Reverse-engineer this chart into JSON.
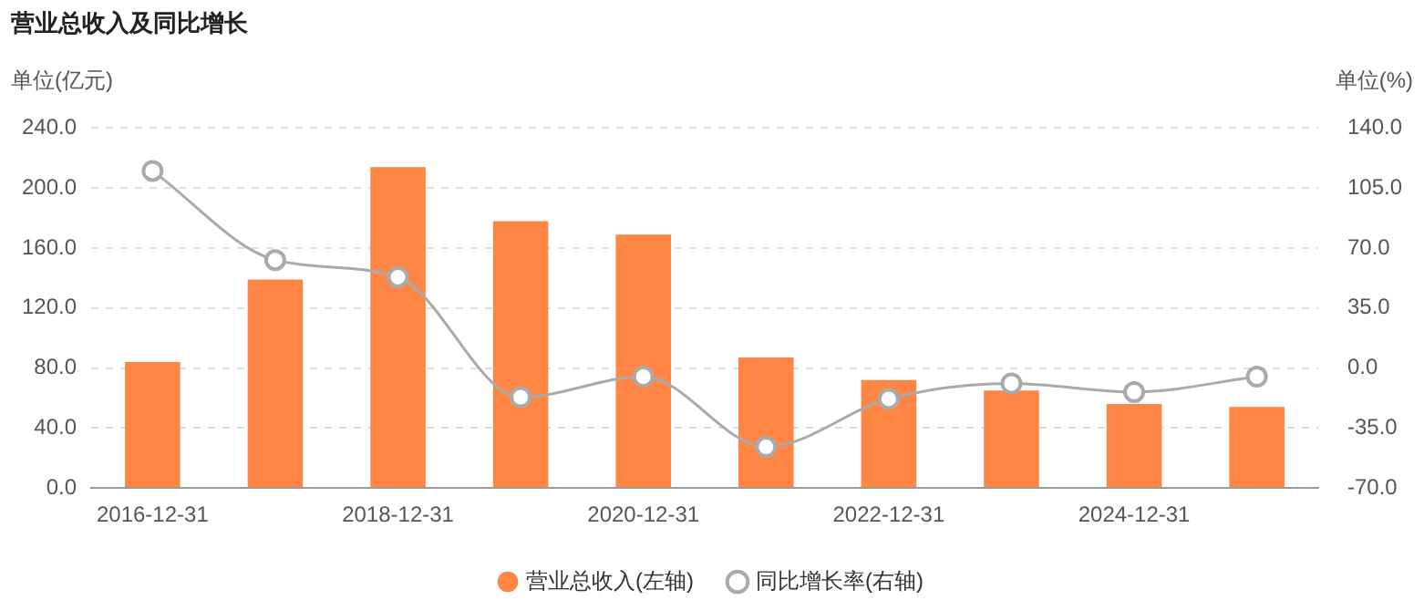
{
  "chart_data": {
    "type": "bar",
    "title": "营业总收入及同比增长",
    "ylabel": "单位(亿元)",
    "y2label": "单位(%)",
    "categories": [
      "2016-12-31",
      null,
      "2018-12-31",
      null,
      "2020-12-31",
      null,
      "2022-12-31",
      null,
      "2024-12-31",
      null
    ],
    "series": [
      {
        "name": "营业总收入(左轴)",
        "color": "#ff8544",
        "values": [
          84,
          139,
          214,
          178,
          169,
          87,
          72,
          65,
          56,
          54
        ]
      },
      {
        "name": "同比增长率(右轴)",
        "type": "line",
        "axis": "y2",
        "color": "#aaaaaa",
        "marker": "circle",
        "values": [
          115,
          63,
          53,
          -17,
          -5,
          -46,
          -18,
          -9,
          -14,
          -5
        ]
      }
    ],
    "ylim": [
      0,
      240
    ],
    "yticks": [
      {
        "value": 0,
        "label": "0.0"
      },
      {
        "value": 40,
        "label": "40.0"
      },
      {
        "value": 80,
        "label": "80.0"
      },
      {
        "value": 120,
        "label": "120.0"
      },
      {
        "value": 160,
        "label": "160.0"
      },
      {
        "value": 200,
        "label": "200.0"
      },
      {
        "value": 240,
        "label": "240.0"
      }
    ],
    "y2lim": [
      -70,
      140
    ],
    "y2ticks": [
      {
        "value": -70,
        "label": "-70.0"
      },
      {
        "value": -35,
        "label": "-35.0"
      },
      {
        "value": 0,
        "label": "0.0"
      },
      {
        "value": 35,
        "label": "35.0"
      },
      {
        "value": 70,
        "label": "70.0"
      },
      {
        "value": 105,
        "label": "105.0"
      },
      {
        "value": 140,
        "label": "140.0"
      }
    ],
    "grid": "y",
    "legend": "bottom"
  }
}
